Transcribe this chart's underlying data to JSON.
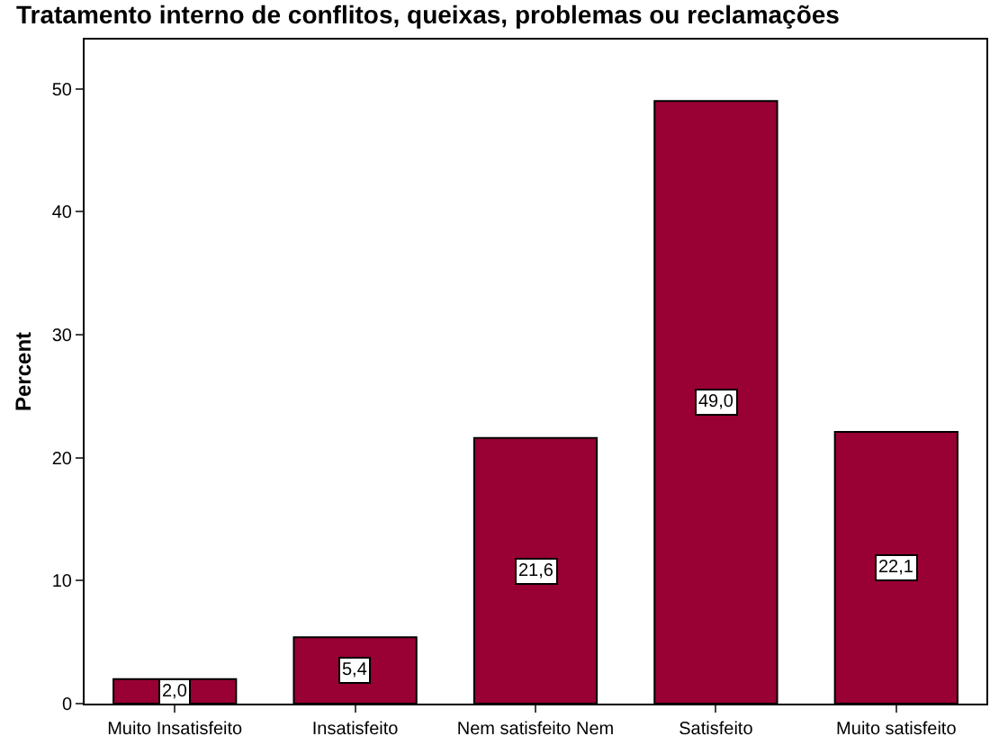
{
  "chart_data": {
    "type": "bar",
    "title": "Tratamento interno de conflitos, queixas, problemas ou reclamações",
    "ylabel": "Percent",
    "categories": [
      "Muito Insatisfeito",
      "Insatisfeito",
      "Nem satisfeito Nem",
      "Satisfeito",
      "Muito satisfeito"
    ],
    "values": [
      2.0,
      5.4,
      21.6,
      49.0,
      22.1
    ],
    "value_labels": [
      "2,0",
      "5,4",
      "21,6",
      "49,0",
      "22,1"
    ],
    "color": "#990033",
    "ylim": [
      0,
      54
    ],
    "yticks": [
      0,
      10,
      20,
      30,
      40,
      50
    ],
    "grid": false,
    "legend": false
  }
}
